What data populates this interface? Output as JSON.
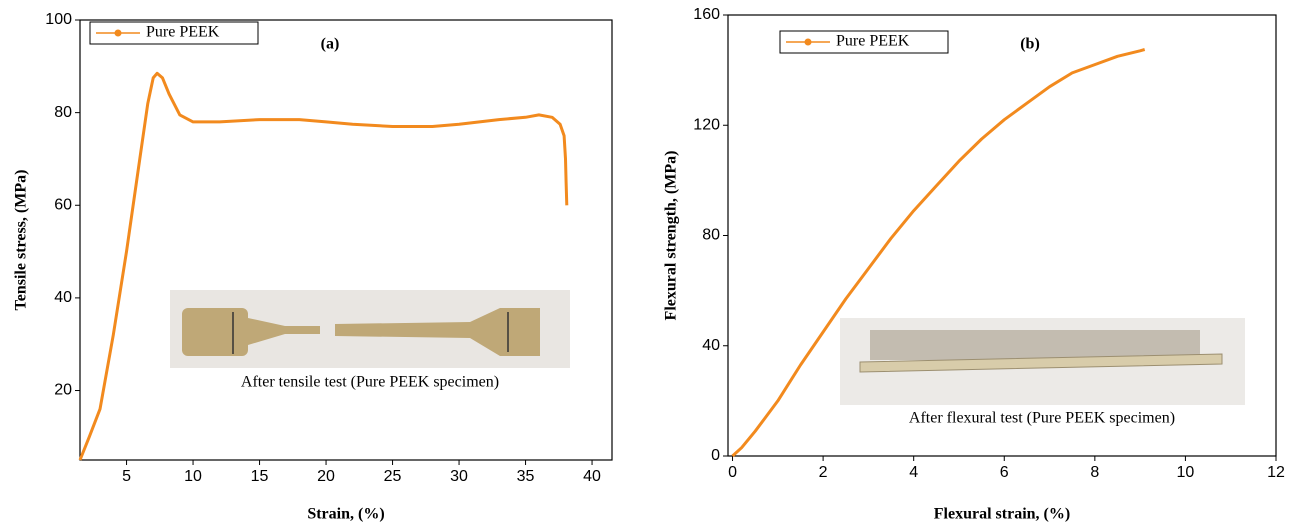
{
  "chart_data": [
    {
      "type": "line",
      "panel_label": "(a)",
      "x_label": "Strain, (%)",
      "y_label": "Tensile stress, (MPa)",
      "x": [
        1.5,
        2.2,
        3,
        4,
        5,
        6,
        6.6,
        7,
        7.3,
        7.7,
        8.2,
        9,
        10,
        12,
        15,
        18,
        20,
        22,
        25,
        28,
        30,
        33,
        35,
        36,
        37,
        37.6,
        37.9,
        38,
        38.05,
        38.1
      ],
      "series": [
        {
          "name": "Pure PEEK",
          "color": "#f28a1e",
          "values": [
            5,
            10,
            16,
            32,
            50,
            70,
            82,
            87.5,
            88.5,
            87.5,
            84,
            79.5,
            78,
            78,
            78.5,
            78.5,
            78,
            77.5,
            77,
            77,
            77.5,
            78.5,
            79,
            79.5,
            79,
            77.5,
            75,
            70,
            65,
            60
          ]
        }
      ],
      "xlim": [
        1.5,
        41.5
      ],
      "xticks": [
        5,
        10,
        15,
        20,
        25,
        30,
        35,
        40
      ],
      "ylim": [
        5,
        100
      ],
      "yticks": [
        20,
        40,
        60,
        80,
        100
      ],
      "inset_caption": "After tensile test (Pure PEEK specimen)"
    },
    {
      "type": "line",
      "panel_label": "(b)",
      "x_label": "Flexural strain, (%)",
      "y_label": "Flexural strength, (MPa)",
      "x": [
        0,
        0.2,
        0.5,
        1,
        1.5,
        2,
        2.5,
        3,
        3.5,
        4,
        4.5,
        5,
        5.5,
        6,
        6.5,
        7,
        7.5,
        8,
        8.5,
        9,
        9.1
      ],
      "series": [
        {
          "name": "Pure PEEK",
          "color": "#f28a1e",
          "values": [
            0,
            3,
            9,
            20,
            33,
            45,
            57,
            68,
            79,
            89,
            98,
            107,
            115,
            122,
            128,
            134,
            139,
            142,
            145,
            147,
            147.5
          ]
        }
      ],
      "xlim": [
        -0.1,
        12
      ],
      "xticks": [
        0,
        2,
        4,
        6,
        8,
        10,
        12
      ],
      "ylim": [
        0,
        160
      ],
      "yticks": [
        0,
        40,
        80,
        120,
        160
      ],
      "inset_caption": "After flexural test (Pure PEEK specimen)"
    }
  ]
}
